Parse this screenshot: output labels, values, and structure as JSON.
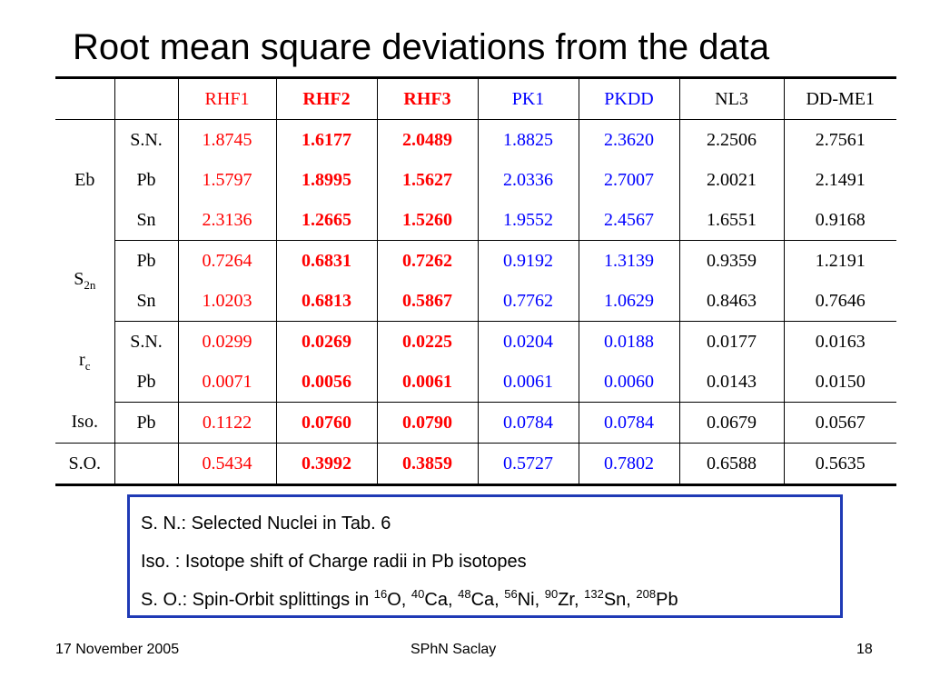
{
  "slide": {
    "title": "Root mean square deviations from the data"
  },
  "table": {
    "header": [
      "",
      "",
      "RHF1",
      "RHF2",
      "RHF3",
      "PK1",
      "PKDD",
      "NL3",
      "DD-ME1"
    ],
    "header_colors": [
      "",
      "",
      "red",
      "red-bold",
      "red-bold",
      "blue",
      "blue",
      "black",
      "black"
    ],
    "groups": [
      {
        "label": "Eb",
        "label_sub": "",
        "rows": [
          {
            "nucleus": "S.N.",
            "values": [
              "1.8745",
              "1.6177",
              "2.0489",
              "1.8825",
              "2.3620",
              "2.2506",
              "2.7561"
            ]
          },
          {
            "nucleus": "Pb",
            "values": [
              "1.5797",
              "1.8995",
              "1.5627",
              "2.0336",
              "2.7007",
              "2.0021",
              "2.1491"
            ]
          },
          {
            "nucleus": "Sn",
            "values": [
              "2.3136",
              "1.2665",
              "1.5260",
              "1.9552",
              "2.4567",
              "1.6551",
              "0.9168"
            ]
          }
        ]
      },
      {
        "label": "S",
        "label_sub": "2n",
        "rows": [
          {
            "nucleus": "Pb",
            "values": [
              "0.7264",
              "0.6831",
              "0.7262",
              "0.9192",
              "1.3139",
              "0.9359",
              "1.2191"
            ]
          },
          {
            "nucleus": "Sn",
            "values": [
              "1.0203",
              "0.6813",
              "0.5867",
              "0.7762",
              "1.0629",
              "0.8463",
              "0.7646"
            ]
          }
        ]
      },
      {
        "label": "r",
        "label_sub": "c",
        "rows": [
          {
            "nucleus": "S.N.",
            "values": [
              "0.0299",
              "0.0269",
              "0.0225",
              "0.0204",
              "0.0188",
              "0.0177",
              "0.0163"
            ]
          },
          {
            "nucleus": "Pb",
            "values": [
              "0.0071",
              "0.0056",
              "0.0061",
              "0.0061",
              "0.0060",
              "0.0143",
              "0.0150"
            ]
          }
        ]
      },
      {
        "label": "Iso.",
        "label_sub": "",
        "rows": [
          {
            "nucleus": "Pb",
            "values": [
              "0.1122",
              "0.0760",
              "0.0790",
              "0.0784",
              "0.0784",
              "0.0679",
              "0.0567"
            ]
          }
        ]
      },
      {
        "label": "S.O.",
        "label_sub": "",
        "rows": [
          {
            "nucleus": "",
            "values": [
              "0.5434",
              "0.3992",
              "0.3859",
              "0.5727",
              "0.7802",
              "0.6588",
              "0.5635"
            ]
          }
        ]
      }
    ]
  },
  "legend": {
    "sn": "S. N.: Selected Nuclei in Tab. 6",
    "iso": "Iso. : Isotope shift of Charge radii in Pb isotopes",
    "so_prefix": "S. O.: Spin-Orbit splittings in ",
    "so_nuclei": [
      {
        "mass": "16",
        "symbol": "O",
        "sep": ", "
      },
      {
        "mass": "40",
        "symbol": "Ca",
        "sep": ", "
      },
      {
        "mass": "48",
        "symbol": "Ca",
        "sep": ", "
      },
      {
        "mass": "56",
        "symbol": "Ni",
        "sep": ", "
      },
      {
        "mass": "90",
        "symbol": "Zr",
        "sep": ", "
      },
      {
        "mass": "132",
        "symbol": "Sn",
        "sep": ", "
      },
      {
        "mass": "208",
        "symbol": "Pb",
        "sep": ""
      }
    ]
  },
  "footer": {
    "date": "17 November 2005",
    "org": "SPhN Saclay",
    "page": "18"
  },
  "colors": {
    "red": "#ff0000",
    "blue": "#0000ff",
    "legend_border": "#1f3ab5"
  }
}
